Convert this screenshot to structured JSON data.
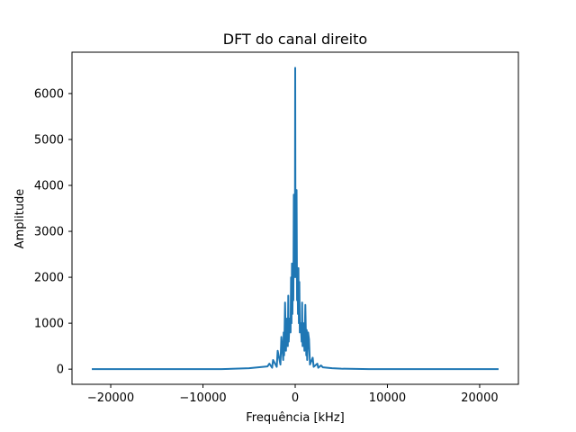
{
  "chart_data": {
    "type": "line",
    "title": "DFT do canal direito",
    "xlabel": "Frequência [kHz]",
    "ylabel": "Amplitude",
    "xlim": [
      -24200,
      24200
    ],
    "ylim": [
      -330,
      6900
    ],
    "x_ticks": [
      {
        "value": -20000,
        "label": "−20000"
      },
      {
        "value": -10000,
        "label": "−10000"
      },
      {
        "value": 0,
        "label": "0"
      },
      {
        "value": 10000,
        "label": "10000"
      },
      {
        "value": 20000,
        "label": "20000"
      }
    ],
    "y_ticks": [
      {
        "value": 0,
        "label": "0"
      },
      {
        "value": 1000,
        "label": "1000"
      },
      {
        "value": 2000,
        "label": "2000"
      },
      {
        "value": 3000,
        "label": "3000"
      },
      {
        "value": 4000,
        "label": "4000"
      },
      {
        "value": 5000,
        "label": "5000"
      },
      {
        "value": 6000,
        "label": "6000"
      }
    ],
    "grid": false,
    "legend": "none",
    "series": [
      {
        "color": "#1f77b4",
        "x": [
          -22050,
          -15000,
          -8000,
          -5000,
          -4000,
          -3000,
          -2800,
          -2500,
          -2400,
          -2000,
          -1900,
          -1600,
          -1500,
          -1300,
          -1250,
          -1200,
          -1100,
          -1000,
          -900,
          -800,
          -750,
          -700,
          -600,
          -500,
          -450,
          -400,
          -350,
          -300,
          -250,
          -200,
          -150,
          -100,
          -60,
          -30,
          0,
          30,
          60,
          100,
          150,
          200,
          250,
          300,
          350,
          400,
          450,
          500,
          600,
          700,
          750,
          800,
          900,
          1000,
          1100,
          1200,
          1250,
          1300,
          1400,
          1500,
          1600,
          1900,
          2000,
          2400,
          2500,
          2800,
          3000,
          4000,
          5000,
          8000,
          15000,
          22050
        ],
        "values": [
          0,
          0,
          0,
          20,
          40,
          60,
          120,
          30,
          200,
          50,
          400,
          100,
          700,
          200,
          800,
          300,
          1450,
          400,
          1100,
          500,
          1600,
          600,
          1100,
          800,
          2000,
          1000,
          2300,
          1200,
          2100,
          1500,
          3800,
          2000,
          3600,
          2500,
          6560,
          2500,
          3700,
          2000,
          3900,
          1500,
          2200,
          1200,
          2200,
          1000,
          1900,
          800,
          1000,
          600,
          1450,
          500,
          1000,
          400,
          1400,
          300,
          850,
          200,
          800,
          650,
          100,
          250,
          50,
          120,
          30,
          80,
          40,
          20,
          10,
          0,
          0,
          0
        ]
      }
    ]
  }
}
